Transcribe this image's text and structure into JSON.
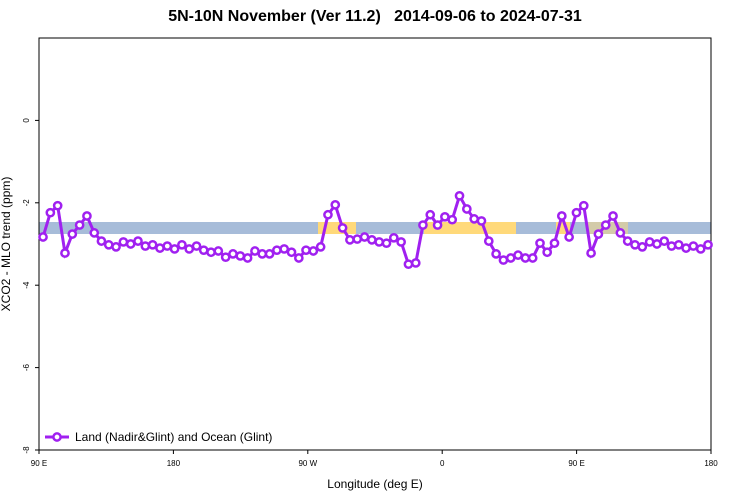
{
  "chart_data": {
    "type": "line",
    "title": "5N-10N November (Ver 11.2)   2014-09-06 to 2024-07-31",
    "x_label": "Longitude (deg E)",
    "y_label": "XCO2 - MLO trend (ppm)",
    "xlim": [
      90,
      540
    ],
    "ylim": [
      -8,
      2
    ],
    "xticks": [
      {
        "value": 90,
        "label": "90 E"
      },
      180,
      {
        "value": 270,
        "label": "90 W"
      },
      {
        "value": 360,
        "label": "0"
      },
      {
        "value": 450,
        "label": "90 E"
      },
      {
        "value": 540,
        "label": "180"
      }
    ],
    "yticks": [
      0,
      -2,
      -4,
      -6,
      -8
    ],
    "legend": "bottom-left",
    "x": [
      92.7,
      97.6,
      102.5,
      107.4,
      112.3,
      117.2,
      122.1,
      127.0,
      131.8,
      136.7,
      141.6,
      146.5,
      151.4,
      156.3,
      161.2,
      166.1,
      171.0,
      175.9,
      180.8,
      185.7,
      190.6,
      195.5,
      200.3,
      205.2,
      210.1,
      215.0,
      219.9,
      224.8,
      229.7,
      234.6,
      239.5,
      244.4,
      249.3,
      254.2,
      259.1,
      264.0,
      268.8,
      273.7,
      278.6,
      283.5,
      288.4,
      293.3,
      298.2,
      303.1,
      308.0,
      312.9,
      317.8,
      322.7,
      327.6,
      332.5,
      337.4,
      342.3,
      347.1,
      352.0,
      356.9,
      361.8,
      366.7,
      371.6,
      376.5,
      381.4,
      386.3,
      391.2,
      396.1,
      401.0,
      405.9,
      410.8,
      415.7,
      420.6,
      425.5,
      430.3,
      435.2,
      440.1,
      445.0,
      449.9,
      454.8,
      459.7,
      464.6,
      469.5,
      474.4,
      479.3,
      484.2,
      489.1,
      494.0,
      498.9,
      503.8,
      508.7,
      513.6,
      518.4,
      523.3,
      528.2,
      533.1,
      538.0
    ],
    "series": [
      {
        "name": "Land (Nadir&Glint) and Ocean (Glint)",
        "color": "#a020f0",
        "values": [
          -2.83,
          -2.24,
          -2.07,
          -3.22,
          -2.76,
          -2.54,
          -2.32,
          -2.73,
          -2.93,
          -3.02,
          -3.07,
          -2.95,
          -3.0,
          -2.93,
          -3.05,
          -3.02,
          -3.1,
          -3.05,
          -3.12,
          -3.02,
          -3.12,
          -3.05,
          -3.15,
          -3.2,
          -3.17,
          -3.32,
          -3.24,
          -3.29,
          -3.34,
          -3.17,
          -3.24,
          -3.24,
          -3.15,
          -3.12,
          -3.2,
          -3.34,
          -3.15,
          -3.17,
          -3.07,
          -2.29,
          -2.05,
          -2.61,
          -2.9,
          -2.88,
          -2.83,
          -2.9,
          -2.95,
          -2.98,
          -2.85,
          -2.95,
          -3.49,
          -3.46,
          -2.54,
          -2.29,
          -2.54,
          -2.34,
          -2.41,
          -1.83,
          -2.15,
          -2.39,
          -2.44,
          -2.93,
          -3.24,
          -3.39,
          -3.34,
          -3.27,
          -3.34,
          -3.34,
          -2.98,
          -3.2,
          -2.98,
          -2.32,
          -2.83,
          -2.24,
          -2.07,
          -3.22,
          -2.76,
          -2.54,
          -2.32,
          -2.73,
          -2.93,
          -3.02,
          -3.07,
          -2.95,
          -3.0,
          -2.93,
          -3.05,
          -3.02,
          -3.1,
          -3.05,
          -3.12,
          -3.02
        ]
      }
    ]
  }
}
